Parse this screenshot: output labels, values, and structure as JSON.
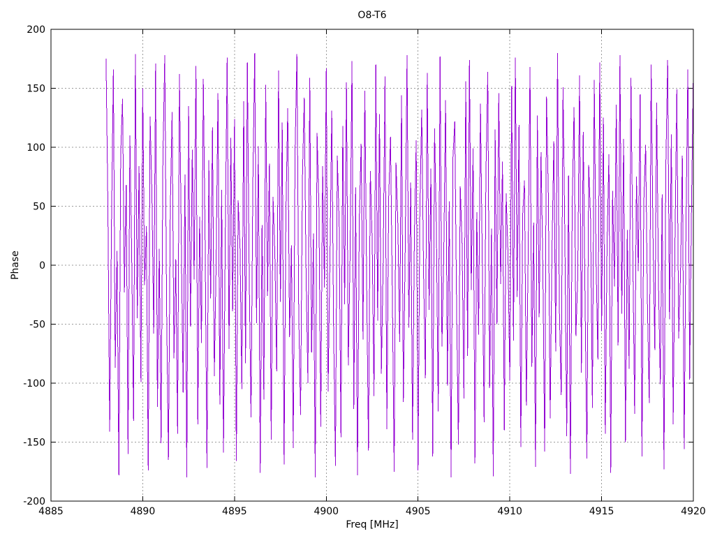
{
  "page": {
    "background": "#ffffff"
  },
  "chart_data": {
    "type": "line",
    "title": "O8-T6",
    "xlabel": "Freq [MHz]",
    "ylabel": "Phase",
    "xlim": [
      4885,
      4920
    ],
    "ylim": [
      -200,
      200
    ],
    "xticks": [
      4885,
      4890,
      4895,
      4900,
      4905,
      4910,
      4915,
      4920
    ],
    "yticks": [
      -200,
      -150,
      -100,
      -50,
      0,
      50,
      100,
      150,
      200
    ],
    "grid": true,
    "legend_position": "none",
    "grid_color": "#9a9a9a",
    "axis_color": "#000000",
    "series": [
      {
        "name": "phase",
        "color": "#9400d3",
        "x_start": 4888.0,
        "x_step": 0.1,
        "values": [
          175,
          52,
          -141,
          38,
          166,
          -87,
          12,
          -178,
          95,
          141,
          -23,
          68,
          -160,
          110,
          7,
          -132,
          179,
          -45,
          84,
          -99,
          150,
          -17,
          33,
          -174,
          126,
          61,
          -58,
          171,
          -120,
          14,
          -151,
          92,
          178,
          -36,
          -165,
          47,
          130,
          -79,
          5,
          -143,
          162,
          24,
          -108,
          77,
          -180,
          135,
          -52,
          98,
          -12,
          169,
          -135,
          41,
          -66,
          158,
          19,
          -172,
          89,
          -28,
          117,
          -94,
          3,
          146,
          -118,
          64,
          -159,
          29,
          176,
          -71,
          108,
          -39,
          124,
          -166,
          55,
          15,
          -105,
          139,
          -83,
          172,
          -8,
          -129,
          70,
          180,
          -49,
          101,
          -176,
          34,
          -114,
          153,
          -26,
          86,
          -148,
          58,
          8,
          -90,
          165,
          -31,
          121,
          -169,
          44,
          133,
          -61,
          17,
          -155,
          97,
          179,
          -42,
          -127,
          73,
          142,
          -9,
          -100,
          159,
          -74,
          27,
          -180,
          112,
          49,
          -137,
          84,
          -19,
          167,
          -107,
          6,
          131,
          -55,
          -170,
          93,
          37,
          -146,
          118,
          -33,
          155,
          -85,
          11,
          173,
          -122,
          66,
          -178,
          40,
          103,
          -63,
          148,
          -14,
          -157,
          80,
          22,
          -111,
          170,
          -47,
          128,
          -92,
          2,
          160,
          -139,
          57,
          109,
          -25,
          -175,
          87,
          35,
          -65,
          144,
          -116,
          13,
          178,
          -53,
          70,
          -148,
          25,
          106,
          -174,
          48,
          132,
          -6,
          -96,
          163,
          -38,
          82,
          -162,
          116,
          29,
          -124,
          177,
          -69,
          7,
          140,
          -102,
          54,
          -180,
          91,
          122,
          -34,
          -152,
          67,
          18,
          -113,
          156,
          -77,
          174,
          -21,
          99,
          -168,
          45,
          -59,
          137,
          4,
          -133,
          79,
          164,
          -104,
          31,
          -179,
          115,
          -50,
          146,
          -16,
          88,
          -140,
          61,
          10,
          -98,
          152,
          -64,
          176,
          -27,
          119,
          -154,
          42,
          72,
          -119,
          9,
          168,
          -86,
          36,
          -171,
          127,
          -44,
          96,
          -3,
          -158,
          143,
          59,
          -130,
          16,
          105,
          -73,
          180,
          -37,
          -110,
          151,
          23,
          -145,
          76,
          -177,
          51,
          134,
          -60,
          -11,
          161,
          -91,
          113,
          -30,
          -164,
          85,
          39,
          -121,
          157,
          1,
          -80,
          172,
          -56,
          125,
          -143,
          20,
          94,
          -176,
          63,
          -18,
          136,
          -68,
          178,
          -41,
          107,
          -150,
          30,
          -88,
          159,
          12,
          -126,
          75,
          -5,
          145,
          -162,
          53,
          102,
          -35,
          -117,
          170,
          26,
          -72,
          138,
          -15,
          -101,
          60,
          -173,
          83,
          174,
          -46,
          111,
          -135,
          21,
          149,
          -62,
          -8,
          93,
          -156,
          37,
          166,
          -97,
          51,
          165
        ]
      }
    ]
  }
}
